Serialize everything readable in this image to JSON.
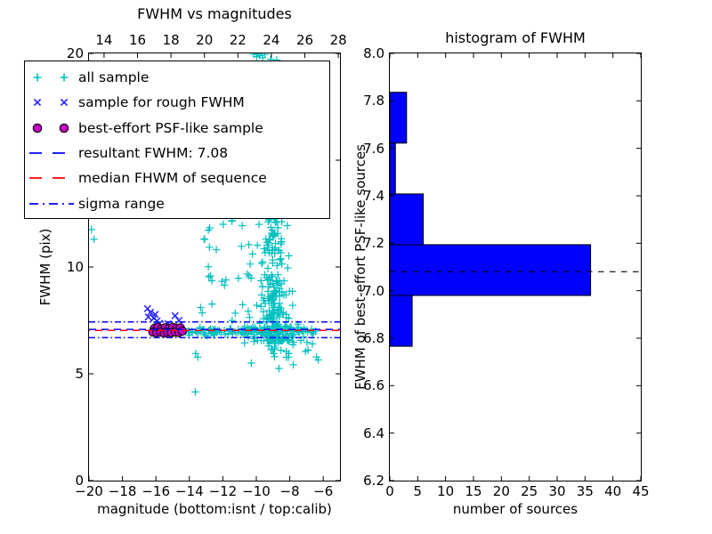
{
  "figure": {
    "background": "#ffffff"
  },
  "colors": {
    "all_sample": "#00bfbf",
    "rough_fwhm": "#2222ff",
    "psf_sample_fill": "#bf00bf",
    "psf_sample_edge": "#000000",
    "resultant_line": "#0000ff",
    "median_line": "#ff0000",
    "sigma_line": "#0000ff",
    "hist_bar_fill": "#0000ff",
    "hist_bar_edge": "#000000",
    "hist_dashed_line": "#000000"
  },
  "legend": {
    "entries": [
      {
        "marker": "plus",
        "color": "#00bfbf",
        "label": "all sample"
      },
      {
        "marker": "cross",
        "color": "#2222ff",
        "label": "sample for rough FWHM"
      },
      {
        "marker": "circle",
        "color": "#bf00bf",
        "label": "best-effort PSF-like sample"
      },
      {
        "marker": "dashed",
        "color": "#0000ff",
        "label": "resultant FWHM: 7.08"
      },
      {
        "marker": "dashed",
        "color": "#ff0000",
        "label": "median FHWM of sequence"
      },
      {
        "marker": "dashdot",
        "color": "#0000ff",
        "label": "sigma range"
      }
    ]
  },
  "chart_data": [
    {
      "type": "scatter",
      "title": "FWHM vs magnitudes",
      "xlabel": "magnitude (bottom:isnt / top:calib)",
      "ylabel": "FWHM (pix)",
      "xlim": [
        -20,
        -5
      ],
      "ylim": [
        0,
        20
      ],
      "top_axis_lim": [
        13.1,
        28.1
      ],
      "x_ticks_bottom": {
        "values": [
          -20,
          -18,
          -16,
          -14,
          -12,
          -10,
          -8,
          -6
        ],
        "labels": [
          "−20",
          "−18",
          "−16",
          "−14",
          "−12",
          "−10",
          "−8",
          "−6"
        ]
      },
      "x_ticks_top": {
        "values": [
          14,
          16,
          18,
          20,
          22,
          24,
          26,
          28
        ],
        "labels": [
          "14",
          "16",
          "18",
          "20",
          "22",
          "24",
          "26",
          "28"
        ]
      },
      "y_ticks": {
        "values": [
          0,
          5,
          10,
          15,
          20
        ],
        "labels": [
          "0",
          "5",
          "10",
          "15",
          "20"
        ]
      },
      "lines": [
        {
          "name": "resultant_fwhm",
          "y": 7.08,
          "style": "dashed",
          "color": "#0000ff",
          "dash": "8 6",
          "dashoffset": 0
        },
        {
          "name": "median_fwhm",
          "y": 7.03,
          "style": "dashed",
          "color": "#ff0000",
          "dash": "8 6",
          "dashoffset": 7
        },
        {
          "name": "sigma_high",
          "y": 7.43,
          "style": "dashdot",
          "color": "#0000ff",
          "dash": "7 3 1.5 3",
          "dashoffset": 0
        },
        {
          "name": "sigma_low",
          "y": 6.69,
          "style": "dashdot",
          "color": "#0000ff",
          "dash": "7 3 1.5 3",
          "dashoffset": 0
        }
      ],
      "resultant_fwhm_value": 7.08,
      "series": {
        "all_sample": {
          "marker": "plus",
          "seed": 42,
          "clusters": [
            {
              "kind": "column",
              "n": 230,
              "x_mu": -8.85,
              "x_sd": 0.42,
              "y_base": 6.55,
              "y_span": 6.0,
              "y_exp": 2.2
            },
            {
              "kind": "box_gauss_x",
              "n": 45,
              "x_mu": -8.82,
              "x_sd": 0.35,
              "y_min": 12.5,
              "y_max": 19.9
            },
            {
              "kind": "band",
              "n": 115,
              "x_min": -14.55,
              "x_max": -6.45,
              "y_mu": 7.0,
              "y_sd": 0.1
            },
            {
              "kind": "band",
              "n": 45,
              "x_min": -11.0,
              "x_max": -7.2,
              "y_mu": 6.92,
              "y_sd": 0.3
            },
            {
              "kind": "box",
              "n": 38,
              "x_min": -13.5,
              "x_max": -9.5,
              "y_min": 7.35,
              "y_max": 12.3
            },
            {
              "kind": "band",
              "n": 26,
              "x_min": -9.5,
              "x_max": -6.3,
              "y_mu": 6.1,
              "y_sd": 0.45
            },
            {
              "kind": "points",
              "pts": [
                [
                  -10.15,
                  19.95
                ],
                [
                  -9.98,
                  19.85
                ],
                [
                  -9.8,
                  19.9
                ],
                [
                  -9.62,
                  19.8
                ],
                [
                  -9.5,
                  19.95
                ],
                [
                  -9.9,
                  20.0
                ],
                [
                  -13.65,
                  4.15
                ],
                [
                  -13.62,
                  5.95
                ],
                [
                  -13.5,
                  5.78
                ],
                [
                  -10.3,
                  5.5
                ],
                [
                  -8.65,
                  5.25
                ],
                [
                  -6.3,
                  5.65
                ],
                [
                  -19.85,
                  11.75
                ],
                [
                  -19.7,
                  11.3
                ]
              ]
            }
          ]
        },
        "rough_fwhm_sample": {
          "marker": "cross",
          "points": [
            [
              -16.5,
              8.05
            ],
            [
              -16.33,
              7.88
            ],
            [
              -16.45,
              7.66
            ],
            [
              -16.12,
              7.6
            ],
            [
              -15.93,
              7.48
            ],
            [
              -15.78,
              7.36
            ],
            [
              -16.05,
              7.78
            ],
            [
              -14.85,
              7.72
            ],
            [
              -14.62,
              7.5
            ],
            [
              -15.28,
              7.34
            ]
          ]
        },
        "psf_like_sample": {
          "marker": "circle",
          "points": [
            [
              -16.1,
              7.12
            ],
            [
              -15.88,
              7.18
            ],
            [
              -15.66,
              7.1
            ],
            [
              -15.45,
              7.16
            ],
            [
              -15.22,
              7.12
            ],
            [
              -15.0,
              7.18
            ],
            [
              -14.78,
              7.12
            ],
            [
              -14.55,
              7.15
            ],
            [
              -16.18,
              6.95
            ],
            [
              -15.95,
              6.92
            ],
            [
              -15.72,
              6.95
            ],
            [
              -15.5,
              6.9
            ],
            [
              -15.3,
              6.94
            ],
            [
              -15.08,
              6.92
            ],
            [
              -14.85,
              6.95
            ],
            [
              -14.62,
              6.93
            ],
            [
              -14.42,
              7.0
            ]
          ]
        }
      }
    },
    {
      "type": "bar",
      "orientation": "horizontal",
      "title": "histogram of FWHM",
      "xlabel": "number of sources",
      "ylabel": "FWHM of best-effort PSF-like sources",
      "xlim": [
        0,
        45
      ],
      "ylim": [
        6.2,
        8.0
      ],
      "x_ticks": {
        "values": [
          0,
          5,
          10,
          15,
          20,
          25,
          30,
          35,
          40,
          45
        ],
        "labels": [
          "0",
          "5",
          "10",
          "15",
          "20",
          "25",
          "30",
          "35",
          "40",
          "45"
        ]
      },
      "y_ticks": {
        "values": [
          6.2,
          6.4,
          6.6,
          6.8,
          7.0,
          7.2,
          7.4,
          7.6,
          7.8,
          8.0
        ],
        "labels": [
          "6.2",
          "6.4",
          "6.6",
          "6.8",
          "7.0",
          "7.2",
          "7.4",
          "7.6",
          "7.8",
          "8.0"
        ]
      },
      "bin_edges": [
        6.766,
        6.98,
        7.194,
        7.408,
        7.622,
        7.836
      ],
      "counts": [
        4,
        36,
        6,
        1,
        3
      ],
      "dashed_line_y": 7.08,
      "dashed_line_label": "resultant FWHM 7.08"
    }
  ]
}
